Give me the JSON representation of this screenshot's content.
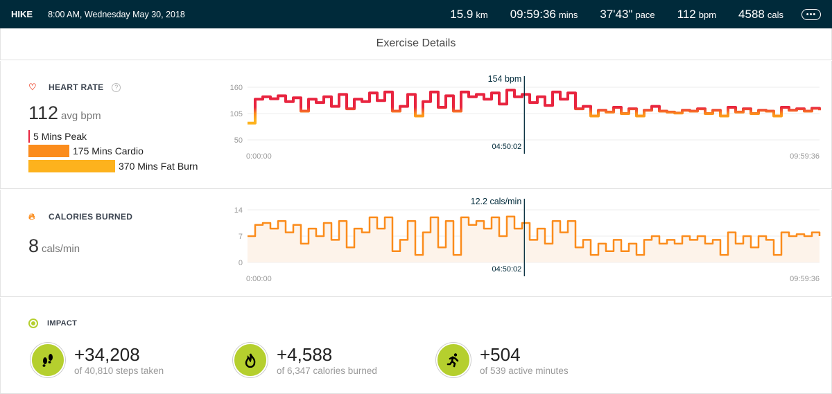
{
  "header": {
    "type": "HIKE",
    "datetime": "8:00 AM, Wednesday May 30, 2018",
    "stats": [
      {
        "value": "15.9",
        "unit": "km"
      },
      {
        "value": "09:59:36",
        "unit": "mins"
      },
      {
        "value": "37'43\"",
        "unit": "pace"
      },
      {
        "value": "112",
        "unit": "bpm"
      },
      {
        "value": "4588",
        "unit": "cals"
      }
    ],
    "more_icon": "ellipsis-icon"
  },
  "page_title": "Exercise Details",
  "heart_rate": {
    "label": "HEART RATE",
    "help": "?",
    "avg": "112",
    "avg_unit": "avg bpm",
    "zones": [
      {
        "label": "5 Mins Peak",
        "minutes": 5,
        "color": "#e8243f"
      },
      {
        "label": "175 Mins Cardio",
        "minutes": 175,
        "color": "#fb8c1c"
      },
      {
        "label": "370 Mins Fat Burn",
        "minutes": 370,
        "color": "#fdb21d"
      }
    ]
  },
  "calories": {
    "label": "CALORIES BURNED",
    "value": "8",
    "unit": "cals/min"
  },
  "impact": {
    "label": "IMPACT",
    "items": [
      {
        "value": "+34,208",
        "desc": "of 40,810 steps taken",
        "icon": "footsteps-icon"
      },
      {
        "value": "+4,588",
        "desc": "of 6,347 calories burned",
        "icon": "flame-icon"
      },
      {
        "value": "+504",
        "desc": "of 539 active minutes",
        "icon": "running-icon"
      }
    ]
  },
  "chart_data": [
    {
      "type": "line",
      "title": "Heart Rate",
      "ylabel": "bpm",
      "yticks": [
        "160",
        "105",
        "50"
      ],
      "ylim": [
        50,
        160
      ],
      "x_start": "0:00:00",
      "x_end": "09:59:36",
      "cursor": {
        "x": "04:50:02",
        "label": "154 bpm",
        "fraction": 0.484
      },
      "values": [
        85,
        135,
        140,
        136,
        142,
        130,
        138,
        110,
        135,
        128,
        140,
        120,
        145,
        115,
        135,
        130,
        148,
        132,
        150,
        110,
        120,
        145,
        100,
        130,
        150,
        118,
        142,
        110,
        150,
        140,
        145,
        135,
        148,
        125,
        154,
        140,
        145,
        128,
        140,
        122,
        150,
        135,
        148,
        115,
        120,
        100,
        112,
        108,
        118,
        105,
        115,
        100,
        112,
        120,
        110,
        108,
        106,
        112,
        110,
        115,
        105,
        112,
        100,
        118,
        108,
        115,
        105,
        112,
        110,
        100,
        118,
        112,
        115,
        110,
        116,
        112
      ]
    },
    {
      "type": "area",
      "title": "Calories Burned",
      "ylabel": "cals/min",
      "yticks": [
        "14",
        "7",
        "0"
      ],
      "ylim": [
        0,
        14
      ],
      "x_start": "0:00:00",
      "x_end": "09:59:36",
      "cursor": {
        "x": "04:50:02",
        "label": "12.2 cals/min",
        "fraction": 0.484
      },
      "values": [
        7,
        10,
        10.5,
        9,
        11,
        8,
        10,
        5,
        9,
        7,
        10.5,
        6,
        11,
        4,
        9,
        8,
        12,
        9,
        12,
        3,
        6,
        11,
        2,
        8,
        12,
        4,
        11,
        2,
        12,
        10,
        11,
        9,
        12,
        7,
        12.2,
        9,
        10.5,
        6,
        9,
        5,
        11,
        8,
        11,
        4,
        6,
        2,
        5,
        3,
        6,
        3,
        5,
        2,
        6,
        7,
        5,
        6,
        5,
        7,
        6,
        7,
        5,
        6,
        2,
        8,
        5,
        7,
        4,
        7,
        6,
        2,
        8,
        7,
        7.5,
        7,
        8,
        7
      ]
    }
  ]
}
